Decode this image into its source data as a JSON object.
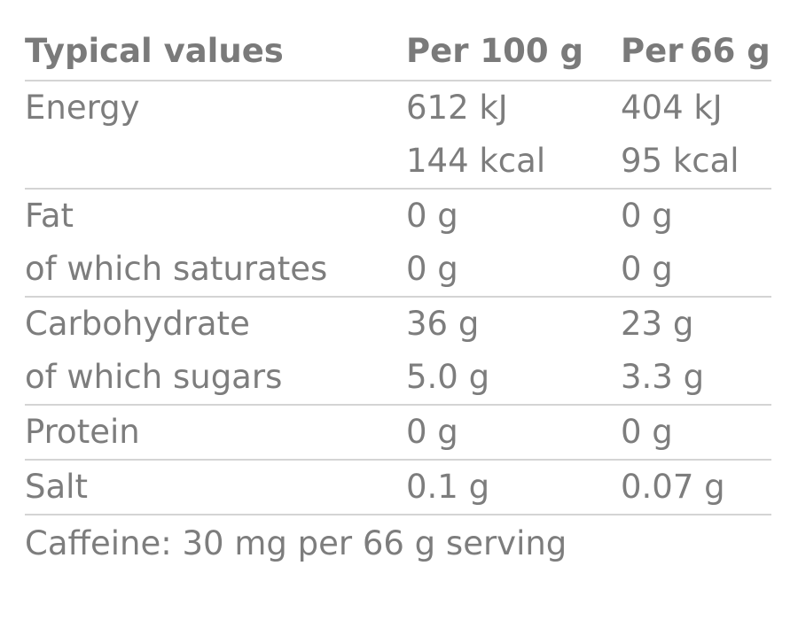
{
  "header": {
    "label": "Typical values",
    "col1": "Per 100 g",
    "col2": "Per 66 g"
  },
  "rows": [
    {
      "label": "Energy",
      "v1": "612 kJ",
      "v2": "404 kJ"
    },
    {
      "label": "",
      "v1": "144 kcal",
      "v2": "95 kcal"
    },
    {
      "label": "Fat",
      "v1": "0 g",
      "v2": "0 g"
    },
    {
      "label": "of which saturates",
      "v1": "0 g",
      "v2": "0 g"
    },
    {
      "label": "Carbohydrate",
      "v1": "36 g",
      "v2": "23 g"
    },
    {
      "label": "of which sugars",
      "v1": "5.0 g",
      "v2": "3.3 g"
    },
    {
      "label": "Protein",
      "v1": "0 g",
      "v2": "0 g"
    },
    {
      "label": "Salt",
      "v1": "0.1 g",
      "v2": "0.07 g"
    }
  ],
  "footer": "Caffeine: 30 mg per 66 g serving"
}
